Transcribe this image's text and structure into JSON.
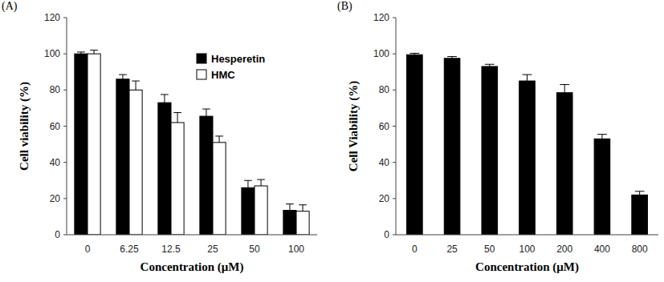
{
  "chart_data": [
    {
      "type": "bar",
      "title": "(A)",
      "x_label": "Concentration (μM)",
      "y_label": "Cell viability (%)",
      "categories": [
        "0",
        "6.25",
        "12.5",
        "25",
        "50",
        "100"
      ],
      "series": [
        {
          "name": "Hesperetin",
          "color": "#000000",
          "values": [
            100,
            86,
            73,
            65.5,
            26,
            13.5
          ],
          "errors": [
            1,
            2.5,
            4.5,
            4,
            4,
            3.5
          ]
        },
        {
          "name": "HMC",
          "color": "#ffffff",
          "values": [
            100,
            80,
            62,
            51,
            27,
            13
          ],
          "errors": [
            2,
            5,
            5.5,
            3.5,
            3.5,
            3.5
          ]
        }
      ],
      "ylim": [
        0,
        120
      ],
      "yticks": [
        0,
        20,
        40,
        60,
        80,
        100,
        120
      ],
      "legend": "upper-right",
      "grid": false
    },
    {
      "type": "bar",
      "title": "(B)",
      "x_label": "Concentration (μM)",
      "y_label": "Cell Viability (%)",
      "categories": [
        "0",
        "25",
        "50",
        "100",
        "200",
        "400",
        "800"
      ],
      "values": [
        99.5,
        97.5,
        93,
        85,
        78.5,
        53,
        22
      ],
      "errors": [
        0.8,
        1,
        1.2,
        3.5,
        4.5,
        2.5,
        2
      ],
      "color": "#000000",
      "ylim": [
        0,
        120
      ],
      "yticks": [
        0,
        20,
        40,
        60,
        80,
        100,
        120
      ],
      "grid": false
    }
  ]
}
